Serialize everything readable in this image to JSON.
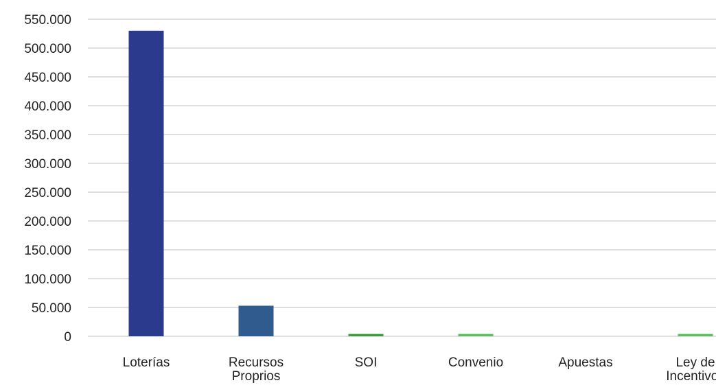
{
  "chart_data": {
    "type": "bar",
    "title": "",
    "xlabel": "",
    "ylabel": "",
    "categories": [
      [
        "Loterías"
      ],
      [
        "Recursos",
        "Proprios"
      ],
      [
        "SOI"
      ],
      [
        "Convenio"
      ],
      [
        "Apuestas"
      ],
      [
        "Ley de",
        "Incentivos"
      ]
    ],
    "values": [
      530000,
      53000,
      4000,
      4000,
      0,
      4000
    ],
    "bar_colors": [
      "#2b3a8c",
      "#2f5b8f",
      "#3d9a3d",
      "#5cbf5c",
      "#5cbf5c",
      "#5cbf5c"
    ],
    "ylim": [
      0,
      550000
    ],
    "y_ticks": [
      0,
      50000,
      100000,
      150000,
      200000,
      250000,
      300000,
      350000,
      400000,
      450000,
      500000,
      550000
    ],
    "y_tick_labels": [
      "0",
      "50.000",
      "100.000",
      "150.000",
      "200.000",
      "250.000",
      "300.000",
      "350.000",
      "400.000",
      "450.000",
      "500.000",
      "550.000"
    ],
    "grid": true,
    "legend": false
  }
}
